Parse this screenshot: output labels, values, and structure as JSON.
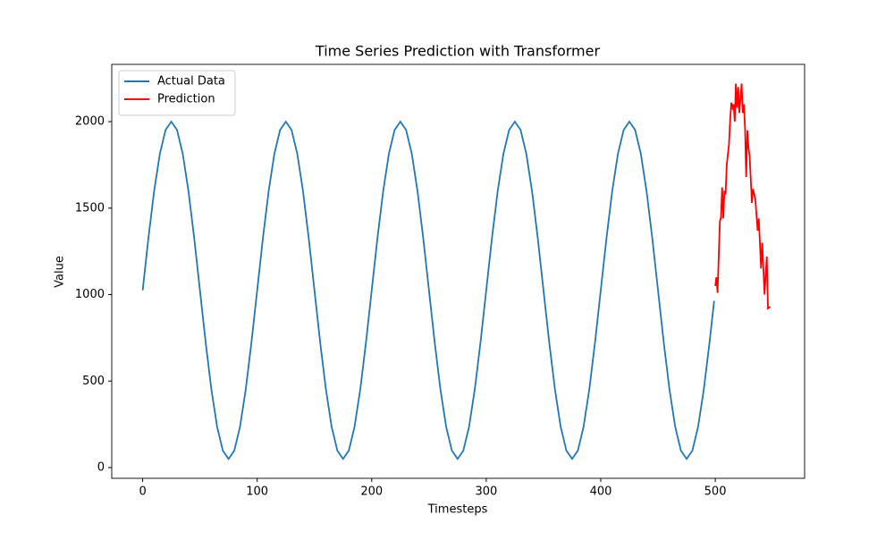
{
  "chart_data": {
    "type": "line",
    "title": "Time Series Prediction with Transformer",
    "x_label": "Timesteps",
    "y_label": "Value",
    "xlim": [
      -27,
      578
    ],
    "ylim": [
      -62,
      2331
    ],
    "xticks": [
      0,
      100,
      200,
      300,
      400,
      500
    ],
    "yticks": [
      0,
      500,
      1000,
      1500,
      2000
    ],
    "legend": "upper left",
    "series": [
      {
        "name": "Actual Data",
        "color": "#1f77b4",
        "x": [
          0,
          5,
          10,
          15,
          20,
          25,
          30,
          35,
          40,
          45,
          50,
          55,
          60,
          65,
          70,
          75,
          80,
          85,
          90,
          95,
          100,
          105,
          110,
          115,
          120,
          125,
          130,
          135,
          140,
          145,
          150,
          155,
          160,
          165,
          170,
          175,
          180,
          185,
          190,
          195,
          200,
          205,
          210,
          215,
          220,
          225,
          230,
          235,
          240,
          245,
          250,
          255,
          260,
          265,
          270,
          275,
          280,
          285,
          290,
          295,
          300,
          305,
          310,
          315,
          320,
          325,
          330,
          335,
          340,
          345,
          350,
          355,
          360,
          365,
          370,
          375,
          380,
          385,
          390,
          395,
          400,
          405,
          410,
          415,
          420,
          425,
          430,
          435,
          440,
          445,
          450,
          455,
          460,
          465,
          470,
          475,
          480,
          485,
          490,
          495,
          499
        ],
        "values": [
          1025,
          1326,
          1598,
          1814,
          1952,
          2000,
          1952,
          1814,
          1598,
          1326,
          1025,
          724,
          452,
          236,
          98,
          50,
          98,
          236,
          452,
          724,
          1025,
          1326,
          1598,
          1814,
          1952,
          2000,
          1952,
          1814,
          1598,
          1326,
          1025,
          724,
          452,
          236,
          98,
          50,
          98,
          236,
          452,
          724,
          1025,
          1326,
          1598,
          1814,
          1952,
          2000,
          1952,
          1814,
          1598,
          1326,
          1025,
          724,
          452,
          236,
          98,
          50,
          98,
          236,
          452,
          724,
          1025,
          1326,
          1598,
          1814,
          1952,
          2000,
          1952,
          1814,
          1598,
          1326,
          1025,
          724,
          452,
          236,
          98,
          50,
          98,
          236,
          452,
          724,
          1025,
          1326,
          1598,
          1814,
          1952,
          2000,
          1952,
          1814,
          1598,
          1326,
          1025,
          724,
          452,
          236,
          98,
          50,
          98,
          236,
          452,
          724,
          964
        ]
      },
      {
        "name": "Prediction",
        "color": "#ff0000",
        "x": [
          500,
          501,
          502,
          504,
          505,
          506,
          507,
          508,
          509,
          510,
          512,
          513,
          514,
          515,
          516,
          517,
          518,
          519,
          520,
          521,
          522,
          523,
          524,
          525,
          526,
          527,
          528,
          529,
          530,
          532,
          533,
          535,
          537,
          538,
          540,
          541,
          543,
          545,
          546,
          548
        ],
        "values": [
          1050,
          1100,
          1010,
          1420,
          1450,
          1620,
          1440,
          1600,
          1580,
          1750,
          1870,
          2010,
          2110,
          2080,
          2100,
          2000,
          2220,
          2080,
          2200,
          2050,
          2130,
          2220,
          2050,
          2100,
          1960,
          1680,
          1950,
          1850,
          1800,
          1530,
          1610,
          1550,
          1370,
          1440,
          1150,
          1300,
          1000,
          1220,
          920,
          930
        ]
      }
    ]
  }
}
